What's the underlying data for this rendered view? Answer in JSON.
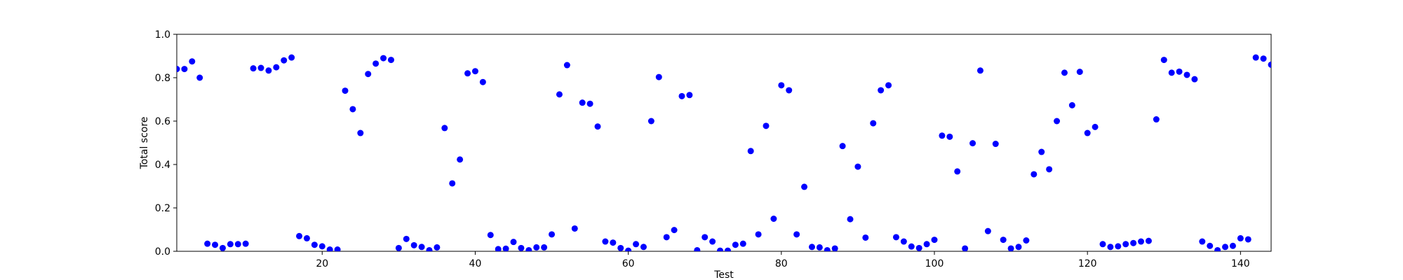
{
  "chart_data": {
    "type": "scatter",
    "title": "",
    "xlabel": "Test",
    "ylabel": "Total score",
    "xlim": [
      1,
      144
    ],
    "ylim": [
      0,
      1.0
    ],
    "x_ticks": [
      20,
      40,
      60,
      80,
      100,
      120,
      140
    ],
    "y_ticks": [
      0.0,
      0.2,
      0.4,
      0.6,
      0.8,
      1.0
    ],
    "x_tick_labels": [
      "20",
      "40",
      "60",
      "80",
      "100",
      "120",
      "140"
    ],
    "y_tick_labels": [
      "0.0",
      "0.2",
      "0.4",
      "0.6",
      "0.8",
      "1.0"
    ],
    "grid": false,
    "legend": "none",
    "marker_color": "#0000ff",
    "series": [
      {
        "x": [
          1,
          2,
          3,
          4,
          5,
          6,
          7,
          8,
          9,
          10,
          11,
          12,
          13,
          14,
          15,
          16,
          17,
          18,
          19,
          20,
          21,
          22,
          23,
          24,
          25,
          26,
          27,
          28,
          29,
          30,
          31,
          32,
          33,
          34,
          35,
          36,
          37,
          38,
          39,
          40,
          41,
          42,
          43,
          44,
          45,
          46,
          47,
          48,
          49,
          50,
          51,
          52,
          53,
          54,
          55,
          56,
          57,
          58,
          59,
          60,
          61,
          62,
          63,
          64,
          65,
          66,
          67,
          68,
          69,
          70,
          71,
          72,
          73,
          74,
          75,
          76,
          77,
          78,
          79,
          80,
          81,
          82,
          83,
          84,
          85,
          86,
          87,
          88,
          89,
          90,
          91,
          92,
          93,
          94,
          95,
          96,
          97,
          98,
          99,
          100,
          101,
          102,
          103,
          104,
          105,
          106,
          107,
          108,
          109,
          110,
          111,
          112,
          113,
          114,
          115,
          116,
          117,
          118,
          119,
          120,
          121,
          122,
          123,
          124,
          125,
          126,
          127,
          128,
          129,
          130,
          131,
          132,
          133,
          134,
          135,
          136,
          137,
          138,
          139,
          140,
          141,
          142,
          143,
          144
        ],
        "y": [
          0.84,
          0.84,
          0.875,
          0.8,
          0.035,
          0.03,
          0.015,
          0.033,
          0.033,
          0.035,
          0.843,
          0.845,
          0.833,
          0.848,
          0.88,
          0.893,
          0.07,
          0.06,
          0.03,
          0.023,
          0.008,
          0.008,
          0.74,
          0.655,
          0.545,
          0.817,
          0.865,
          0.89,
          0.882,
          0.015,
          0.057,
          0.028,
          0.02,
          0.005,
          0.018,
          0.568,
          0.313,
          0.423,
          0.82,
          0.83,
          0.78,
          0.075,
          0.01,
          0.012,
          0.043,
          0.015,
          0.005,
          0.018,
          0.018,
          0.078,
          0.723,
          0.858,
          0.105,
          0.685,
          0.68,
          0.575,
          0.045,
          0.04,
          0.015,
          0.003,
          0.033,
          0.02,
          0.6,
          0.803,
          0.065,
          0.098,
          0.715,
          0.72,
          0.005,
          0.065,
          0.045,
          0.003,
          0.003,
          0.03,
          0.035,
          0.462,
          0.078,
          0.578,
          0.15,
          0.765,
          0.742,
          0.078,
          0.297,
          0.02,
          0.018,
          0.005,
          0.013,
          0.485,
          0.148,
          0.39,
          0.063,
          0.59,
          0.742,
          0.765,
          0.065,
          0.045,
          0.022,
          0.015,
          0.033,
          0.053,
          0.533,
          0.528,
          0.368,
          0.013,
          0.498,
          0.833,
          0.093,
          0.495,
          0.053,
          0.013,
          0.02,
          0.05,
          0.355,
          0.458,
          0.378,
          0.6,
          0.823,
          0.673,
          0.827,
          0.545,
          0.573,
          0.033,
          0.02,
          0.023,
          0.033,
          0.038,
          0.045,
          0.048,
          0.608,
          0.882,
          0.823,
          0.828,
          0.813,
          0.793,
          0.045,
          0.025,
          0.005,
          0.02,
          0.025,
          0.06,
          0.055,
          0.893,
          0.888,
          0.86
        ]
      }
    ]
  }
}
